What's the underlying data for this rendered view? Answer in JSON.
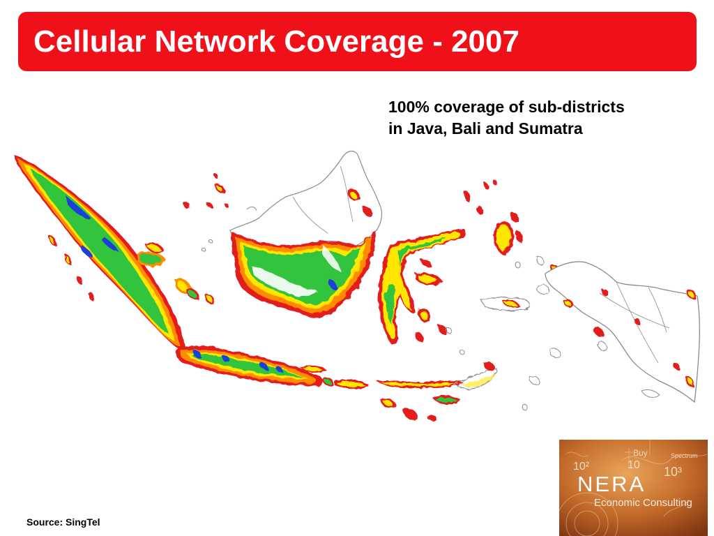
{
  "slide": {
    "title": "Cellular Network Coverage - 2007",
    "annotation_line1": "100% coverage of sub-districts",
    "annotation_line2": "in Java, Bali and Sumatra",
    "source": "Source: SingTel"
  },
  "map": {
    "subject": "Indonesia cellular coverage",
    "legend": [],
    "colors": {
      "border": "#e31a1c",
      "edge": "#ff8c00",
      "mid": "#ffe600",
      "core": "#33c43c",
      "dense": "#1e3fd6",
      "uncovered_outline": "#8a8a8a"
    }
  },
  "logo": {
    "name": "NERA",
    "tagline": "Economic Consulting",
    "deco_buy": "Buy",
    "deco_spectrum": "Spectrum",
    "deco_10_2": "10²",
    "deco_10": "10",
    "deco_10_3": "10³",
    "colors": {
      "bg_light": "#e0944a",
      "bg_dark": "#8a3d12"
    }
  },
  "colors": {
    "title_bar": "#f0101a",
    "title_text": "#ffffff"
  }
}
